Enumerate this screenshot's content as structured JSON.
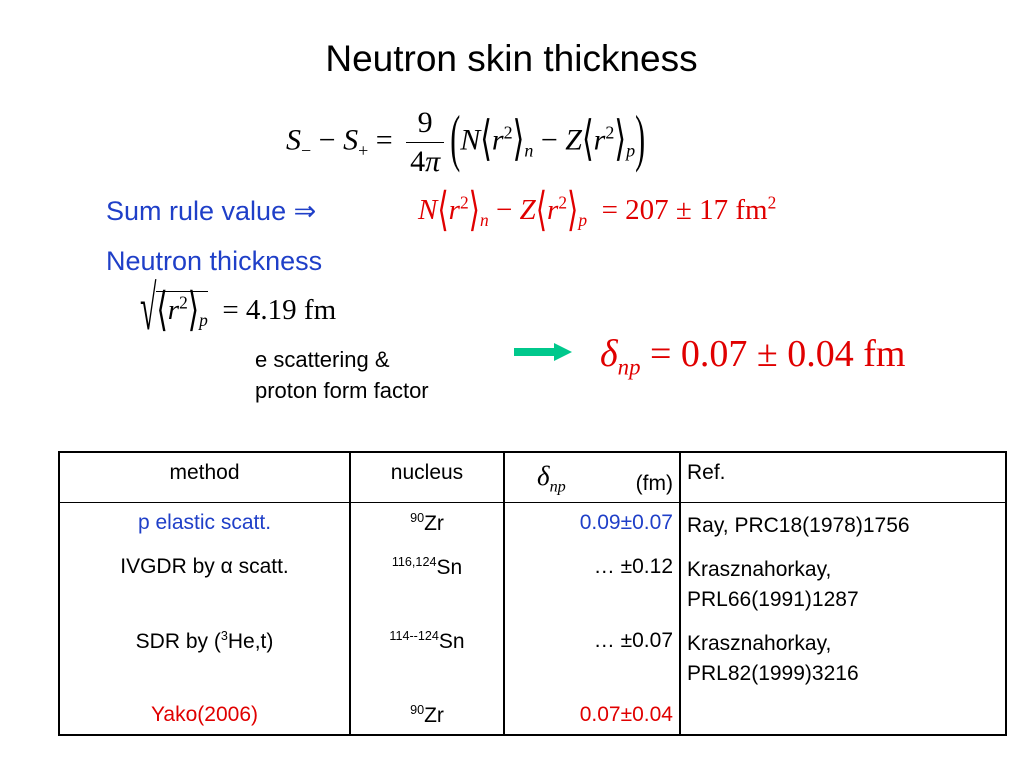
{
  "title": "Neutron skin thickness",
  "sum_rule_label": "Sum rule value ⇒",
  "neutron_thickness_label": "Neutron thickness",
  "eq1": {
    "lhs": "S₋ − S₊ =",
    "numerator": "9",
    "denominator": "4π",
    "rhs": "N⟨r²⟩ₙ − Z⟨r²⟩ₚ"
  },
  "eq2": {
    "lhs": "N⟨r²⟩ₙ − Z⟨r²⟩ₚ",
    "rhs": "= 207 ± 17 fm²"
  },
  "eq3": {
    "expr": "√⟨r²⟩ₚ",
    "rhs": "= 4.19 fm"
  },
  "note": {
    "line1": "e scattering &",
    "line2": "proton form factor"
  },
  "eq4": {
    "symbol": "δnp",
    "rhs": "= 0.07 ± 0.04 fm"
  },
  "colors": {
    "blue": "#1f3fc8",
    "red": "#e00000",
    "arrow": "#00c88c"
  },
  "table": {
    "headers": {
      "method": "method",
      "nucleus": "nucleus",
      "delta_symbol": "δnp",
      "delta_unit": "(fm)",
      "ref": "Ref."
    },
    "rows": [
      {
        "method": "p elastic scatt.",
        "nucleus_mass": "90",
        "nucleus_el": "Zr",
        "delta": "0.09±0.07",
        "ref_line1": "Ray, PRC18(1978)1756",
        "ref_line2": "",
        "color": "blue"
      },
      {
        "method": "IVGDR by α scatt.",
        "nucleus_mass": "116,124",
        "nucleus_el": "Sn",
        "delta": "… ±0.12",
        "ref_line1": "Krasznahorkay,",
        "ref_line2": "PRL66(1991)1287",
        "color": ""
      },
      {
        "method_pre": "SDR by (",
        "method_sup": "3",
        "method_post": "He,t)",
        "nucleus_mass": "114--124",
        "nucleus_el": "Sn",
        "delta": "… ±0.07",
        "ref_line1": "Krasznahorkay,",
        "ref_line2": "PRL82(1999)3216",
        "color": ""
      },
      {
        "method": "Yako(2006)",
        "nucleus_mass": "90",
        "nucleus_el": "Zr",
        "delta": "0.07±0.04",
        "ref_line1": "",
        "ref_line2": "",
        "color": "red"
      }
    ]
  }
}
